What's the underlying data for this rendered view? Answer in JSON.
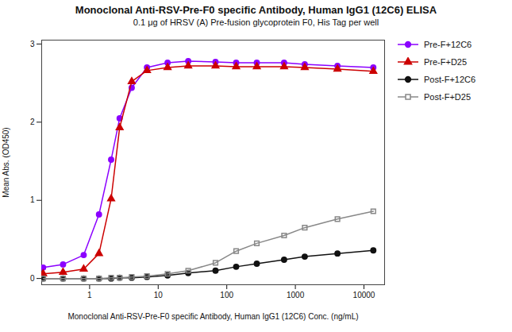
{
  "chart_data": {
    "type": "line",
    "title": "Monoclonal Anti-RSV-Pre-F0 specific Antibody, Human IgG1 (12C6) ELISA",
    "subtitle": "0.1 μg of HRSV (A) Pre-fusion glycoprotein F0, His Tag per well",
    "xlabel": "Monoclonal Anti-RSV-Pre-F0 specific Antibody, Human IgG1 (12C6) Conc. (ng/mL)",
    "ylabel": "Mean Abs. (OD450)",
    "log": "x",
    "grid": false,
    "legend": "right",
    "xlim": [
      0.2,
      20000
    ],
    "ylim": [
      -0.08,
      3.05
    ],
    "xticks": [
      1,
      10,
      100,
      1000,
      10000
    ],
    "yticks": [
      0,
      1,
      2,
      3
    ],
    "x": [
      0.21,
      0.41,
      0.82,
      1.37,
      2.06,
      2.74,
      4.11,
      6.86,
      13.7,
      27.4,
      68.5,
      137,
      274,
      685,
      1370,
      4110,
      13700
    ],
    "series": [
      {
        "name": "Pre-F+12C6",
        "color": "#8B00FF",
        "marker": "circle",
        "values": [
          0.14,
          0.18,
          0.3,
          0.82,
          1.52,
          2.05,
          2.44,
          2.7,
          2.76,
          2.78,
          2.77,
          2.76,
          2.76,
          2.76,
          2.74,
          2.72,
          2.7
        ]
      },
      {
        "name": "Pre-F+D25",
        "color": "#CC0000",
        "marker": "triangle",
        "values": [
          0.06,
          0.08,
          0.12,
          0.32,
          1.02,
          1.93,
          2.52,
          2.66,
          2.7,
          2.72,
          2.72,
          2.71,
          2.71,
          2.71,
          2.7,
          2.68,
          2.65
        ]
      },
      {
        "name": "Post-F+12C6",
        "color": "#111111",
        "marker": "circle",
        "values": [
          0.0,
          0.0,
          0.0,
          0.0,
          0.0,
          0.01,
          0.01,
          0.02,
          0.04,
          0.07,
          0.1,
          0.15,
          0.19,
          0.24,
          0.28,
          0.32,
          0.36
        ]
      },
      {
        "name": "Post-F+D25",
        "color": "#888888",
        "marker": "open-square",
        "values": [
          0.0,
          0.0,
          0.0,
          0.0,
          0.01,
          0.01,
          0.02,
          0.03,
          0.06,
          0.1,
          0.2,
          0.35,
          0.45,
          0.55,
          0.65,
          0.76,
          0.86
        ]
      }
    ]
  }
}
